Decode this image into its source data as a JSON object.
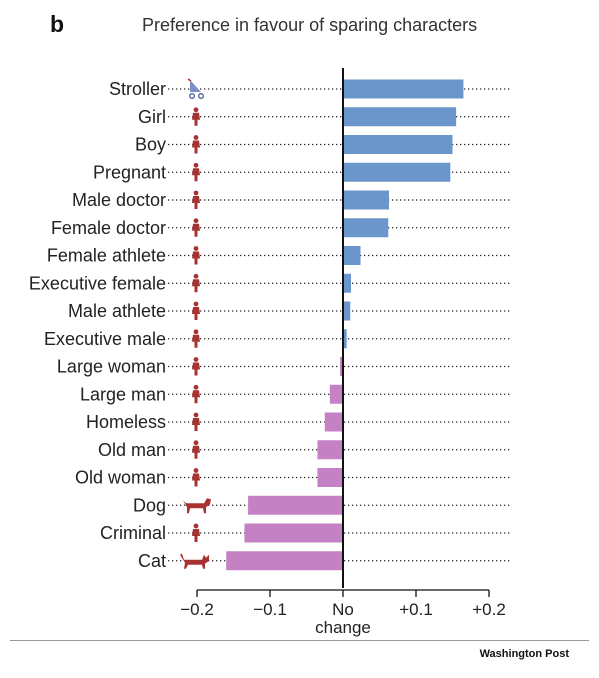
{
  "panel_letter": "b",
  "source": "Washington Post",
  "colors": {
    "positive": "#6b96cc",
    "negative": "#c481c4",
    "icon": "#a83232",
    "axis": "#111111"
  },
  "chart_data": {
    "type": "bar",
    "orientation": "horizontal",
    "title": "Preference in favour of sparing characters",
    "xlim": [
      -0.2,
      0.2
    ],
    "xticks": [
      {
        "value": -0.2,
        "label": "−0.2"
      },
      {
        "value": -0.1,
        "label": "−0.1"
      },
      {
        "value": 0,
        "label": "No",
        "label2": "change"
      },
      {
        "value": 0.1,
        "label": "+0.1"
      },
      {
        "value": 0.2,
        "label": "+0.2"
      }
    ],
    "categories": [
      "Stroller",
      "Girl",
      "Boy",
      "Pregnant",
      "Male doctor",
      "Female doctor",
      "Female athlete",
      "Executive female",
      "Male athlete",
      "Executive male",
      "Large woman",
      "Large man",
      "Homeless",
      "Old man",
      "Old woman",
      "Dog",
      "Criminal",
      "Cat"
    ],
    "values": [
      0.165,
      0.155,
      0.15,
      0.147,
      0.063,
      0.062,
      0.024,
      0.011,
      0.01,
      0.005,
      -0.004,
      -0.018,
      -0.025,
      -0.035,
      -0.035,
      -0.13,
      -0.135,
      -0.16
    ],
    "icons": [
      "stroller-icon",
      "person-icon",
      "person-icon",
      "person-icon",
      "person-icon",
      "person-icon",
      "person-icon",
      "person-icon",
      "person-icon",
      "person-icon",
      "person-icon",
      "person-icon",
      "person-icon",
      "person-icon",
      "person-icon",
      "dog-icon",
      "person-icon",
      "cat-icon"
    ],
    "grid": "dotted-row-guides"
  }
}
